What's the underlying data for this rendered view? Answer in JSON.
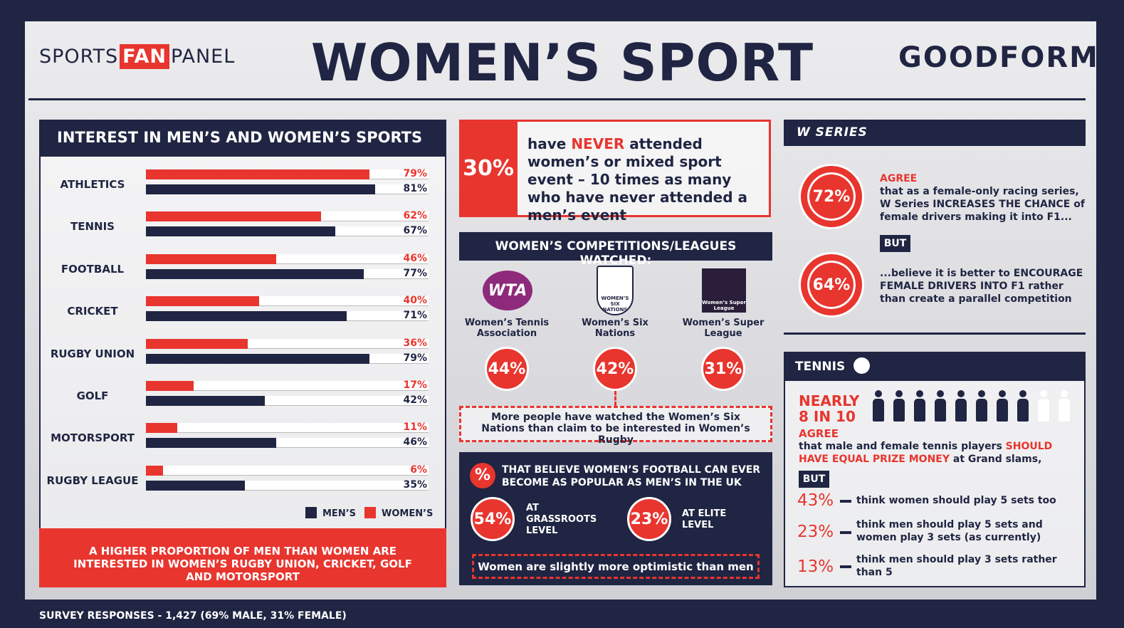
{
  "header": {
    "logo_left": [
      "SPORTS",
      "FAN",
      "PANEL"
    ],
    "title": "WOMEN’S SPORT",
    "logo_right": "GOODFORM"
  },
  "chart_data": {
    "type": "bar",
    "orientation": "horizontal",
    "title": "INTEREST IN MEN’S AND WOMEN’S SPORTS",
    "categories": [
      "ATHLETICS",
      "TENNIS",
      "FOOTBALL",
      "CRICKET",
      "RUGBY UNION",
      "GOLF",
      "MOTORSPORT",
      "RUGBY LEAGUE"
    ],
    "series": [
      {
        "name": "MEN’S",
        "color": "#1f2542",
        "values": [
          81,
          67,
          77,
          71,
          79,
          42,
          46,
          35
        ],
        "value_labels": [
          "81%",
          "67%",
          "77%",
          "71%",
          "79%",
          "42%",
          "46%",
          "35%"
        ]
      },
      {
        "name": "WOMEN’S",
        "color": "#e8352e",
        "values": [
          79,
          62,
          46,
          40,
          36,
          17,
          11,
          6
        ],
        "value_labels": [
          "79%",
          "62%",
          "46%",
          "40%",
          "36%",
          "17%",
          "11%",
          "6%"
        ]
      }
    ],
    "xlim": [
      0,
      100
    ],
    "note": "A HIGHER PROPORTION OF MEN THAN WOMEN ARE INTERESTED IN WOMEN’S RUGBY UNION, CRICKET, GOLF AND MOTORSPORT"
  },
  "never_attended": {
    "value": "30%",
    "parts": [
      "have ",
      "NEVER",
      " attended women’s or mixed sport event – 10 times as many who have never attended a men’s event"
    ]
  },
  "leagues": {
    "title": "WOMEN’S COMPETITIONS/LEAGUES WATCHED:",
    "items": [
      {
        "logo": "WTA",
        "name": "Women’s Tennis Association",
        "value": "44%"
      },
      {
        "logo": "WOMEN’S SIX NATIONS",
        "name": "Women’s Six Nations",
        "value": "42%"
      },
      {
        "logo": "Women’s Super League",
        "name": "Women’s Super League",
        "value": "31%"
      }
    ],
    "note": "More people have watched the Women’s Six Nations than claim to be interested in Women’s Rugby"
  },
  "football": {
    "icon": "%",
    "title": "THAT BELIEVE WOMEN’S FOOTBALL CAN EVER BECOME AS POPULAR AS MEN’S IN THE UK",
    "items": [
      {
        "value": "54%",
        "label": "AT GRASSROOTS LEVEL"
      },
      {
        "value": "23%",
        "label": "AT ELITE LEVEL"
      }
    ],
    "note": "Women are slightly more optimistic than men"
  },
  "w_series": {
    "logo": "W SERIES",
    "stats": [
      {
        "value": "72%",
        "parts": [
          "AGREE",
          "that as a female-only racing series, W Series INCREASES THE CHANCE of female drivers making it into F1..."
        ]
      },
      {
        "value": "64%",
        "parts": [
          "...believe it is better to ENCOURAGE FEMALE DRIVERS INTO F1 rather than create a parallel competition"
        ]
      }
    ],
    "but": "BUT"
  },
  "tennis": {
    "title": "TENNIS",
    "headline": [
      "NEARLY",
      "8 IN 10"
    ],
    "agree": "AGREE",
    "statement": [
      "that male and female tennis players ",
      "SHOULD HAVE EQUAL PRIZE MONEY",
      " at Grand slams,"
    ],
    "but": "BUT",
    "options": [
      {
        "value": "43%",
        "text": "think women should play 5 sets too"
      },
      {
        "value": "23%",
        "text": "think men should play 5 sets and women play 3 sets (as currently)"
      },
      {
        "value": "13%",
        "text": "think men should play 3 sets rather than 5"
      }
    ]
  },
  "footer": "SURVEY RESPONSES - 1,427 (69% MALE, 31% FEMALE)"
}
